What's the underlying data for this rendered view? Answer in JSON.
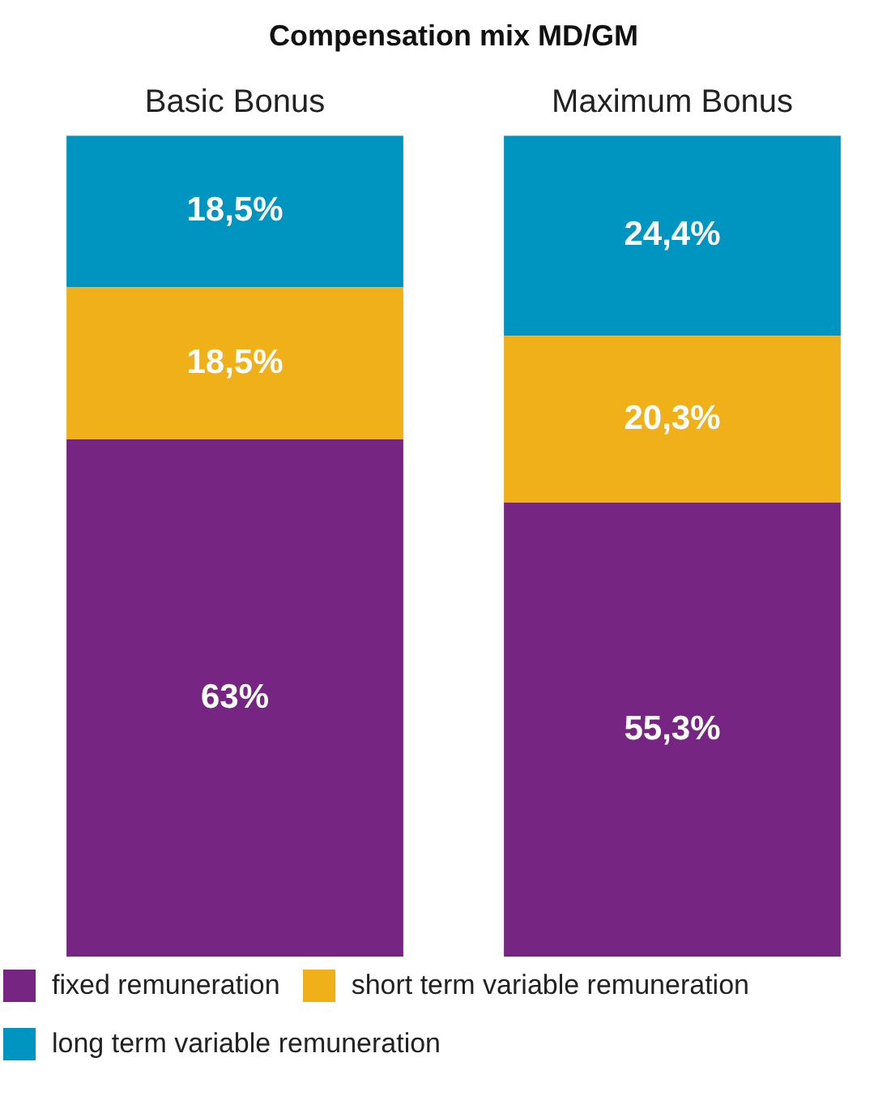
{
  "chart_data": {
    "type": "bar",
    "title": "Compensation mix MD/GM",
    "categories": [
      "Basic Bonus",
      "Maximum Bonus"
    ],
    "stacked": true,
    "ylim": [
      0,
      100
    ],
    "tick_labels": "x",
    "legend": "bottom",
    "series": [
      {
        "name": "fixed remuneration",
        "color": "#772583",
        "values": [
          63,
          55.3
        ],
        "value_labels": [
          "63%",
          "55,3%"
        ]
      },
      {
        "name": "short term variable remuneration",
        "color": "#f0b019",
        "values": [
          18.5,
          20.3
        ],
        "value_labels": [
          "18,5%",
          "20,3%"
        ]
      },
      {
        "name": "long term variable remuneration",
        "color": "#0094c0",
        "values": [
          18.5,
          24.4
        ],
        "value_labels": [
          "18,5%",
          "24,4%"
        ]
      }
    ]
  }
}
